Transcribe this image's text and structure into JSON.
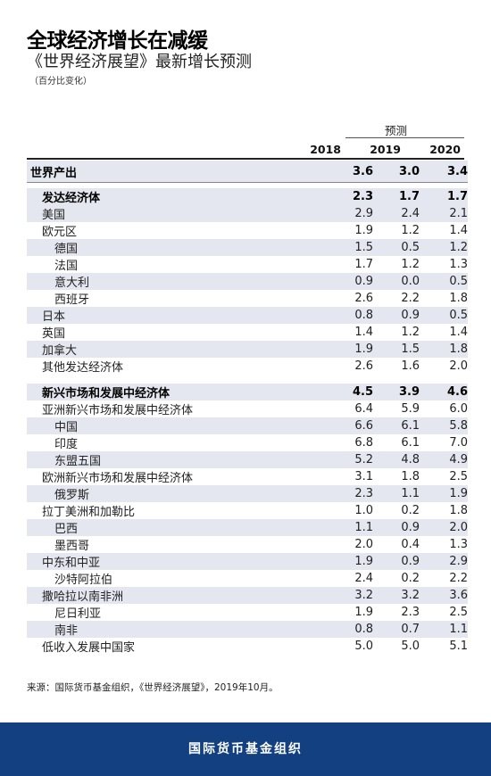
{
  "title": "全球经济增长在减缓",
  "subtitle": "《世界经济展望》最新增长预测",
  "note": "（百分比变化）",
  "forecast_label": "预测",
  "source": "来源：国际货币基金组织，《世界经济展望》，2019年10月。",
  "footer": "国际货币基金组织",
  "colors": {
    "footer_bg": "#124080",
    "row_shade": "#e4e7ef"
  },
  "chart_data": {
    "type": "table",
    "columns": [
      "2018",
      "2019",
      "2020"
    ],
    "rows": [
      {
        "label": "世界产出",
        "values": [
          "3.6",
          "3.0",
          "3.4"
        ],
        "level": 0,
        "bold": true
      },
      {
        "label": "发达经济体",
        "values": [
          "2.3",
          "1.7",
          "1.7"
        ],
        "level": 1,
        "bold": true
      },
      {
        "label": "美国",
        "values": [
          "2.9",
          "2.4",
          "2.1"
        ],
        "level": 1
      },
      {
        "label": "欧元区",
        "values": [
          "1.9",
          "1.2",
          "1.4"
        ],
        "level": 1
      },
      {
        "label": "德国",
        "values": [
          "1.5",
          "0.5",
          "1.2"
        ],
        "level": 2
      },
      {
        "label": "法国",
        "values": [
          "1.7",
          "1.2",
          "1.3"
        ],
        "level": 2
      },
      {
        "label": "意大利",
        "values": [
          "0.9",
          "0.0",
          "0.5"
        ],
        "level": 2
      },
      {
        "label": "西班牙",
        "values": [
          "2.6",
          "2.2",
          "1.8"
        ],
        "level": 2
      },
      {
        "label": "日本",
        "values": [
          "0.8",
          "0.9",
          "0.5"
        ],
        "level": 1
      },
      {
        "label": "英国",
        "values": [
          "1.4",
          "1.2",
          "1.4"
        ],
        "level": 1
      },
      {
        "label": "加拿大",
        "values": [
          "1.9",
          "1.5",
          "1.8"
        ],
        "level": 1
      },
      {
        "label": "其他发达经济体",
        "values": [
          "2.6",
          "1.6",
          "2.0"
        ],
        "level": 1
      },
      {
        "label": "新兴市场和发展中经济体",
        "values": [
          "4.5",
          "3.9",
          "4.6"
        ],
        "level": 1,
        "bold": true
      },
      {
        "label": "亚洲新兴市场和发展中经济体",
        "values": [
          "6.4",
          "5.9",
          "6.0"
        ],
        "level": 1
      },
      {
        "label": "中国",
        "values": [
          "6.6",
          "6.1",
          "5.8"
        ],
        "level": 2
      },
      {
        "label": "印度",
        "values": [
          "6.8",
          "6.1",
          "7.0"
        ],
        "level": 2
      },
      {
        "label": "东盟五国",
        "values": [
          "5.2",
          "4.8",
          "4.9"
        ],
        "level": 2
      },
      {
        "label": "欧洲新兴市场和发展中经济体",
        "values": [
          "3.1",
          "1.8",
          "2.5"
        ],
        "level": 1
      },
      {
        "label": "俄罗斯",
        "values": [
          "2.3",
          "1.1",
          "1.9"
        ],
        "level": 2
      },
      {
        "label": "拉丁美洲和加勒比",
        "values": [
          "1.0",
          "0.2",
          "1.8"
        ],
        "level": 1
      },
      {
        "label": "巴西",
        "values": [
          "1.1",
          "0.9",
          "2.0"
        ],
        "level": 2
      },
      {
        "label": "墨西哥",
        "values": [
          "2.0",
          "0.4",
          "1.3"
        ],
        "level": 2
      },
      {
        "label": "中东和中亚",
        "values": [
          "1.9",
          "0.9",
          "2.9"
        ],
        "level": 1
      },
      {
        "label": "沙特阿拉伯",
        "values": [
          "2.4",
          "0.2",
          "2.2"
        ],
        "level": 2
      },
      {
        "label": "撒哈拉以南非洲",
        "values": [
          "3.2",
          "3.2",
          "3.6"
        ],
        "level": 1
      },
      {
        "label": "尼日利亚",
        "values": [
          "1.9",
          "2.3",
          "2.5"
        ],
        "level": 2
      },
      {
        "label": "南非",
        "values": [
          "0.8",
          "0.7",
          "1.1"
        ],
        "level": 2
      },
      {
        "label": "低收入发展中国家",
        "values": [
          "5.0",
          "5.0",
          "5.1"
        ],
        "level": 1
      }
    ]
  }
}
